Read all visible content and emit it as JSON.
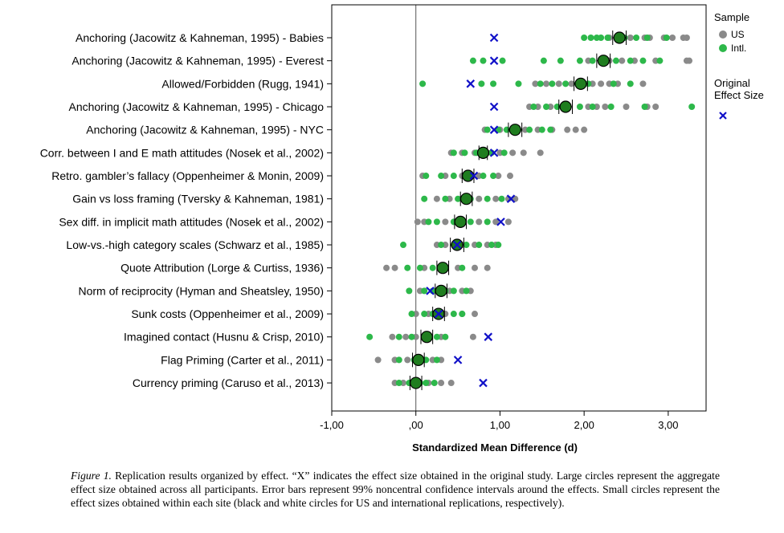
{
  "chart_data": {
    "type": "scatter",
    "xlabel": "Standardized Mean Difference (d)",
    "xlim": [
      -1.0,
      3.45
    ],
    "xticks": [
      -1,
      0,
      1,
      2,
      3
    ],
    "xtick_labels": [
      "-1,00",
      ",00",
      "1,00",
      "2,00",
      "3,00"
    ],
    "reference_line_x": 0,
    "legend": {
      "title": "Sample",
      "entries": [
        "US",
        "Intl."
      ],
      "original_title_line1": "Original",
      "original_title_line2": "Effect Size"
    },
    "colors": {
      "US": "#8a8a8a",
      "Intl": "#2db84a",
      "aggregate": "#1f7d1f",
      "original": "#1010c8"
    },
    "effects": [
      {
        "label": "Anchoring (Jacowitz & Kahneman, 1995) - Babies",
        "agg": 2.42,
        "ci": [
          2.34,
          2.5
        ],
        "original": 0.93,
        "us": [
          2.3,
          2.45,
          2.55,
          2.72,
          2.78,
          2.95,
          3.05,
          3.18,
          3.22
        ],
        "intl": [
          2.0,
          2.08,
          2.15,
          2.2,
          2.28,
          2.4,
          2.48,
          2.62,
          2.75,
          2.98
        ]
      },
      {
        "label": "Anchoring (Jacowitz & Kahneman, 1995) - Everest",
        "agg": 2.23,
        "ci": [
          2.15,
          2.31
        ],
        "original": 0.93,
        "us": [
          2.05,
          2.3,
          2.45,
          2.6,
          2.85,
          3.22,
          3.25
        ],
        "intl": [
          0.68,
          0.8,
          1.03,
          1.52,
          1.72,
          1.95,
          2.1,
          2.38,
          2.55,
          2.7,
          2.9
        ]
      },
      {
        "label": "Allowed/Forbidden (Rugg, 1941)",
        "agg": 1.96,
        "ci": [
          1.88,
          2.04
        ],
        "original": 0.65,
        "us": [
          1.42,
          1.55,
          1.7,
          1.85,
          2.1,
          2.2,
          2.3,
          2.4,
          2.7
        ],
        "intl": [
          0.08,
          0.78,
          0.92,
          1.22,
          1.48,
          1.62,
          1.78,
          1.92,
          2.05,
          2.35,
          2.55
        ]
      },
      {
        "label": "Anchoring (Jacowitz & Kahneman, 1995) - Chicago",
        "agg": 1.78,
        "ci": [
          1.7,
          1.86
        ],
        "original": 0.93,
        "us": [
          1.35,
          1.45,
          1.6,
          2.05,
          2.15,
          2.25,
          2.5,
          2.75,
          2.85
        ],
        "intl": [
          1.4,
          1.55,
          1.68,
          1.8,
          1.95,
          2.1,
          2.32,
          2.72,
          3.28
        ]
      },
      {
        "label": "Anchoring (Jacowitz & Kahneman, 1995) - NYC",
        "agg": 1.18,
        "ci": [
          1.1,
          1.26
        ],
        "original": 0.93,
        "us": [
          0.82,
          1.0,
          1.15,
          1.3,
          1.45,
          1.62,
          1.8,
          1.9,
          2.0
        ],
        "intl": [
          0.85,
          0.98,
          1.08,
          1.22,
          1.35,
          1.5,
          1.6
        ]
      },
      {
        "label": "Corr. between I and E math attitudes (Nosek et al., 2002)",
        "agg": 0.8,
        "ci": [
          0.75,
          0.85
        ],
        "original": 0.93,
        "us": [
          0.42,
          0.55,
          0.7,
          0.85,
          1.0,
          1.15,
          1.28,
          1.48
        ],
        "intl": [
          0.45,
          0.58,
          0.72,
          0.82,
          0.9,
          1.05
        ]
      },
      {
        "label": "Retro. gambler’s fallacy (Oppenheimer & Monin, 2009)",
        "agg": 0.62,
        "ci": [
          0.55,
          0.69
        ],
        "original": 0.69,
        "us": [
          0.08,
          0.35,
          0.55,
          0.75,
          0.98,
          1.12
        ],
        "intl": [
          0.12,
          0.3,
          0.45,
          0.62,
          0.8,
          0.92
        ]
      },
      {
        "label": "Gain vs loss framing (Tversky & Kahneman, 1981)",
        "agg": 0.6,
        "ci": [
          0.53,
          0.67
        ],
        "original": 1.13,
        "us": [
          0.25,
          0.4,
          0.55,
          0.75,
          0.95,
          1.1,
          1.18
        ],
        "intl": [
          0.1,
          0.35,
          0.5,
          0.65,
          0.85,
          1.02
        ]
      },
      {
        "label": "Sex diff. in implicit math attitudes (Nosek et al., 2002)",
        "agg": 0.53,
        "ci": [
          0.46,
          0.6
        ],
        "original": 1.01,
        "us": [
          0.02,
          0.1,
          0.35,
          0.55,
          0.75,
          0.95,
          1.1
        ],
        "intl": [
          0.15,
          0.25,
          0.45,
          0.65,
          0.85
        ]
      },
      {
        "label": "Low-vs.-high category scales (Schwarz et al., 1985)",
        "agg": 0.49,
        "ci": [
          0.41,
          0.57
        ],
        "original": 0.49,
        "us": [
          0.25,
          0.35,
          0.55,
          0.7,
          0.85,
          0.95
        ],
        "intl": [
          -0.15,
          0.3,
          0.45,
          0.6,
          0.75,
          0.9,
          0.98
        ]
      },
      {
        "label": "Quote Attribution (Lorge & Curtiss, 1936)",
        "agg": 0.32,
        "ci": [
          0.25,
          0.39
        ],
        "original": null,
        "us": [
          -0.35,
          -0.25,
          0.1,
          0.3,
          0.5,
          0.7,
          0.85
        ],
        "intl": [
          -0.1,
          0.05,
          0.2,
          0.35,
          0.55
        ]
      },
      {
        "label": "Norm of reciprocity (Hyman and Sheatsley, 1950)",
        "agg": 0.3,
        "ci": [
          0.23,
          0.37
        ],
        "original": 0.17,
        "us": [
          0.05,
          0.25,
          0.4,
          0.55,
          0.65
        ],
        "intl": [
          -0.08,
          0.1,
          0.2,
          0.35,
          0.45,
          0.6
        ]
      },
      {
        "label": "Sunk costs (Oppenheimer et al., 2009)",
        "agg": 0.27,
        "ci": [
          0.2,
          0.34
        ],
        "original": 0.27,
        "us": [
          0.0,
          0.15,
          0.35,
          0.55,
          0.7
        ],
        "intl": [
          -0.05,
          0.1,
          0.2,
          0.3,
          0.45,
          0.55
        ]
      },
      {
        "label": "Imagined contact (Husnu & Crisp, 2010)",
        "agg": 0.13,
        "ci": [
          0.06,
          0.2
        ],
        "original": 0.86,
        "us": [
          -0.28,
          -0.12,
          0.0,
          0.15,
          0.3,
          0.68
        ],
        "intl": [
          -0.55,
          -0.2,
          -0.05,
          0.1,
          0.25,
          0.35
        ]
      },
      {
        "label": "Flag Priming (Carter et al., 2011)",
        "agg": 0.03,
        "ci": [
          -0.04,
          0.1
        ],
        "original": 0.5,
        "us": [
          -0.45,
          -0.25,
          -0.1,
          0.05,
          0.2,
          0.3
        ],
        "intl": [
          -0.2,
          -0.02,
          0.12,
          0.25
        ]
      },
      {
        "label": "Currency priming (Caruso et al., 2013)",
        "agg": 0.0,
        "ci": [
          -0.07,
          0.07
        ],
        "original": 0.8,
        "us": [
          -0.25,
          -0.15,
          0.0,
          0.15,
          0.3,
          0.42
        ],
        "intl": [
          -0.2,
          -0.08,
          0.05,
          0.12,
          0.22
        ]
      }
    ]
  },
  "caption": {
    "figure_label": "Figure 1.",
    "text": " Replication results organized by effect. “X” indicates the effect size obtained in the original study. Large circles represent the aggregate effect size obtained across all participants. Error bars represent 99% noncentral confidence intervals around the effects. Small circles represent the effect sizes obtained within each site (black and white circles for US and international replications, respectively)."
  }
}
